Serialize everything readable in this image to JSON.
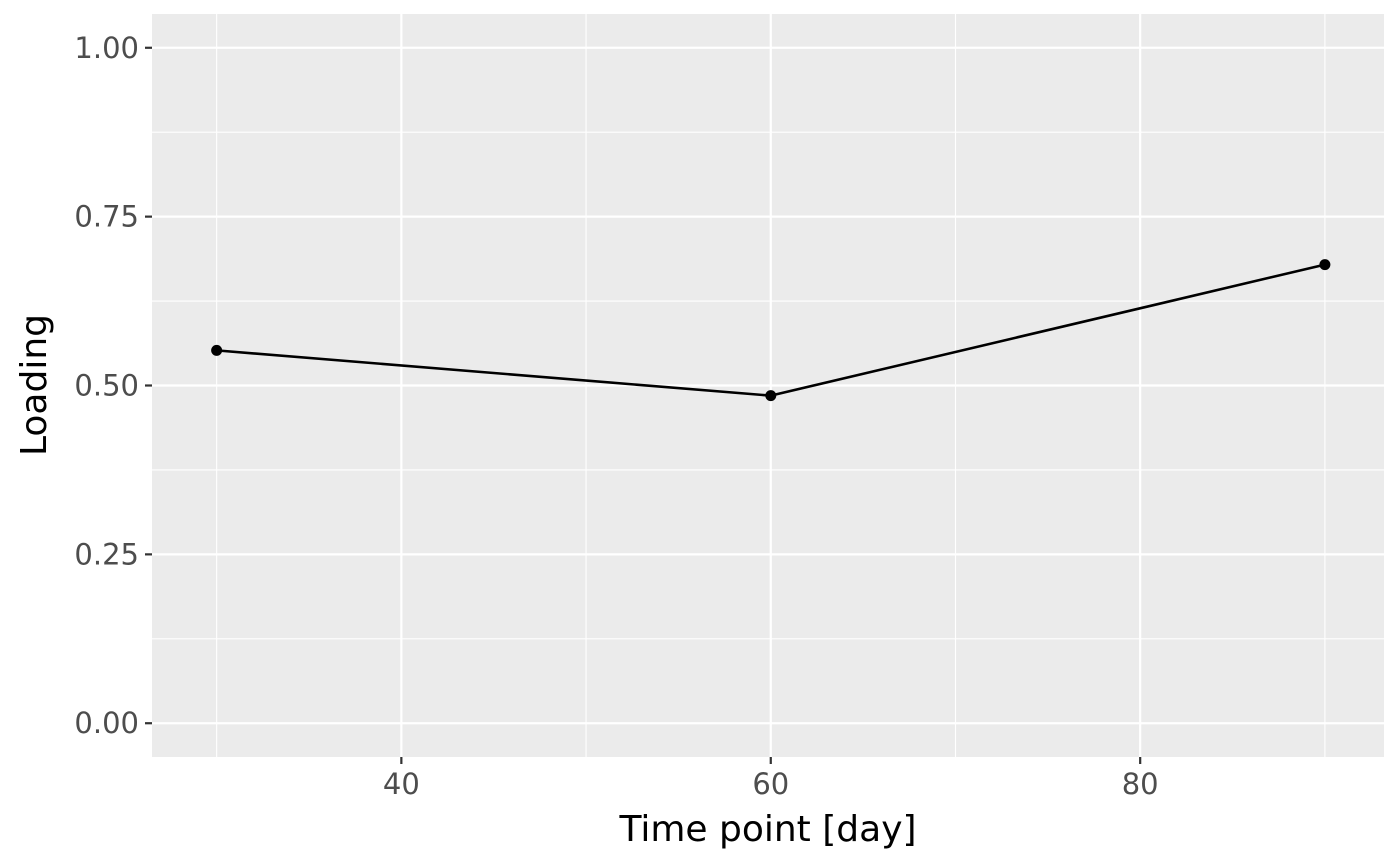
{
  "chart_data": {
    "type": "line",
    "title": "",
    "xlabel": "Time point [day]",
    "ylabel": "Loading",
    "x": [
      30,
      60,
      90
    ],
    "series": [
      {
        "values": [
          0.552,
          0.485,
          0.679
        ]
      }
    ],
    "xlim": [
      26.5,
      93.2
    ],
    "ylim": [
      -0.05,
      1.05
    ],
    "x_ticks": [
      40,
      60,
      80
    ],
    "x_tick_labels": [
      "40",
      "60",
      "80"
    ],
    "y_ticks": [
      0,
      0.25,
      0.5,
      0.75,
      1
    ],
    "y_tick_labels": [
      "0.00",
      "0.25",
      "0.50",
      "0.75",
      "1.00"
    ],
    "grid": true,
    "legend": "none",
    "colors": {
      "panel_background": "#ebebeb",
      "grid": "#ffffff",
      "line": "#000000",
      "point": "#000000",
      "tick_text": "#4d4d4d",
      "tick_mark": "#333333"
    }
  }
}
